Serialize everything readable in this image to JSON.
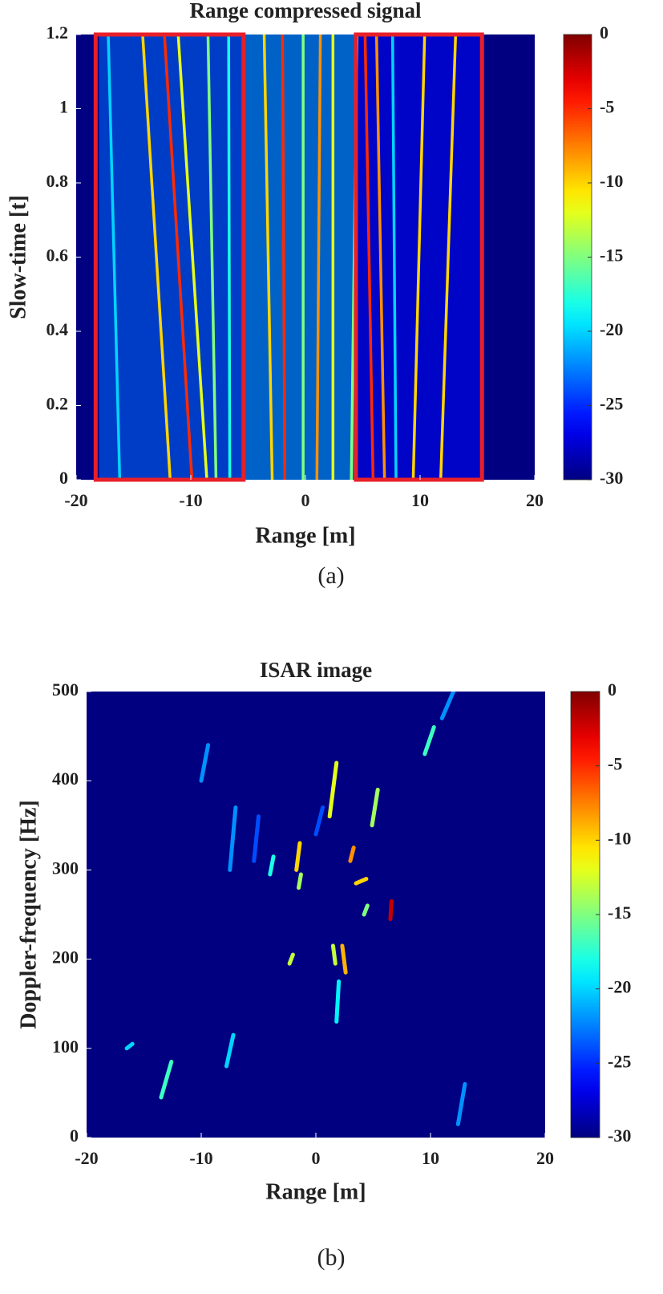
{
  "chart_data": [
    {
      "type": "heatmap",
      "title": "Range compressed signal",
      "xlabel": "Range [m]",
      "ylabel": "Slow-time [t]",
      "caption": "(a)",
      "xlim": [
        -20,
        20
      ],
      "ylim": [
        0,
        1.2
      ],
      "xticks": [
        -20,
        -10,
        0,
        10,
        20
      ],
      "yticks": [
        0,
        0.2,
        0.4,
        0.6,
        0.8,
        1,
        1.2
      ],
      "colormap": "jet",
      "clim": [
        -30,
        0
      ],
      "cticks": [
        0,
        -5,
        -10,
        -15,
        -20,
        -25,
        -30
      ],
      "bands": [
        {
          "x": [
            -18,
            -5.5
          ],
          "value": -23
        },
        {
          "x": [
            -5.5,
            4.5
          ],
          "value": -21
        },
        {
          "x": [
            4.5,
            15.5
          ],
          "value": -26
        }
      ],
      "stripes": [
        {
          "x": [
            -16.2,
            -17.2
          ],
          "value": -20
        },
        {
          "x": [
            -11.8,
            -14.2
          ],
          "value": -10
        },
        {
          "x": [
            -9.9,
            -12.3
          ],
          "value": -5
        },
        {
          "x": [
            -8.6,
            -11.1
          ],
          "value": -12
        },
        {
          "x": [
            -7.8,
            -8.5
          ],
          "value": -15
        },
        {
          "x": [
            -6.6,
            -6.7
          ],
          "value": -18
        },
        {
          "x": [
            -2.9,
            -3.6
          ],
          "value": -10
        },
        {
          "x": [
            -1.8,
            -2.0
          ],
          "value": -5
        },
        {
          "x": [
            -0.2,
            -0.2
          ],
          "value": -15
        },
        {
          "x": [
            1.0,
            1.3
          ],
          "value": -8
        },
        {
          "x": [
            2.4,
            2.4
          ],
          "value": -12
        },
        {
          "x": [
            4.0,
            4.5
          ],
          "value": -15
        },
        {
          "x": [
            5.9,
            5.2
          ],
          "value": -5
        },
        {
          "x": [
            6.9,
            6.2
          ],
          "value": -8
        },
        {
          "x": [
            7.9,
            7.6
          ],
          "value": -20
        },
        {
          "x": [
            9.4,
            10.4
          ],
          "value": -10
        },
        {
          "x": [
            11.8,
            13.1
          ],
          "value": -10
        }
      ],
      "highlight_color": "#e8202a",
      "highlight_boxes": [
        {
          "x": [
            -18.3,
            -5.4
          ]
        },
        {
          "x": [
            4.4,
            15.4
          ]
        }
      ]
    },
    {
      "type": "heatmap",
      "title": "ISAR image",
      "xlabel": "Range [m]",
      "ylabel": "Doppler-frequency [Hz]",
      "caption": "(b)",
      "xlim": [
        -20,
        20
      ],
      "ylim": [
        0,
        500
      ],
      "xticks": [
        -20,
        -10,
        0,
        10,
        20
      ],
      "yticks": [
        0,
        100,
        200,
        300,
        400,
        500
      ],
      "colormap": "jet",
      "clim": [
        -30,
        0
      ],
      "cticks": [
        0,
        -5,
        -10,
        -15,
        -20,
        -25,
        -30
      ],
      "streaks": [
        {
          "x": [
            1.2,
            1.8
          ],
          "y": [
            360,
            420
          ],
          "value": -12
        },
        {
          "x": [
            4.9,
            5.4
          ],
          "y": [
            350,
            390
          ],
          "value": -14
        },
        {
          "x": [
            -1.7,
            -1.4
          ],
          "y": [
            300,
            330
          ],
          "value": -10
        },
        {
          "x": [
            3.0,
            3.3
          ],
          "y": [
            310,
            325
          ],
          "value": -8
        },
        {
          "x": [
            2.6,
            2.3
          ],
          "y": [
            185,
            215
          ],
          "value": -9
        },
        {
          "x": [
            1.7,
            1.5
          ],
          "y": [
            195,
            215
          ],
          "value": -13
        },
        {
          "x": [
            -2.3,
            -2.0
          ],
          "y": [
            195,
            205
          ],
          "value": -13
        },
        {
          "x": [
            9.5,
            10.3
          ],
          "y": [
            430,
            460
          ],
          "value": -17
        },
        {
          "x": [
            6.5,
            6.6
          ],
          "y": [
            245,
            265
          ],
          "value": -2
        },
        {
          "x": [
            -1.5,
            -1.3
          ],
          "y": [
            280,
            295
          ],
          "value": -14
        },
        {
          "x": [
            -13.5,
            -12.6
          ],
          "y": [
            45,
            85
          ],
          "value": -17
        },
        {
          "x": [
            -4,
            -3.7
          ],
          "y": [
            295,
            315
          ],
          "value": -18
        },
        {
          "x": [
            3.5,
            4.4
          ],
          "y": [
            285,
            290
          ],
          "value": -10
        },
        {
          "x": [
            1.8,
            2.0
          ],
          "y": [
            130,
            175
          ],
          "value": -19
        },
        {
          "x": [
            -16.5,
            -16
          ],
          "y": [
            100,
            105
          ],
          "value": -20
        },
        {
          "x": [
            12.4,
            13.0
          ],
          "y": [
            15,
            60
          ],
          "value": -22
        },
        {
          "x": [
            -10,
            -9.4
          ],
          "y": [
            400,
            440
          ],
          "value": -22
        },
        {
          "x": [
            -7.5,
            -7.0
          ],
          "y": [
            300,
            370
          ],
          "value": -22
        },
        {
          "x": [
            -7.8,
            -7.2
          ],
          "y": [
            80,
            115
          ],
          "value": -20
        },
        {
          "x": [
            -5.4,
            -5.0
          ],
          "y": [
            310,
            360
          ],
          "value": -24
        },
        {
          "x": [
            4.2,
            4.5
          ],
          "y": [
            250,
            260
          ],
          "value": -15
        },
        {
          "x": [
            0.0,
            0.6
          ],
          "y": [
            340,
            370
          ],
          "value": -24
        },
        {
          "x": [
            11.0,
            12.0
          ],
          "y": [
            470,
            500
          ],
          "value": -22
        }
      ]
    }
  ]
}
